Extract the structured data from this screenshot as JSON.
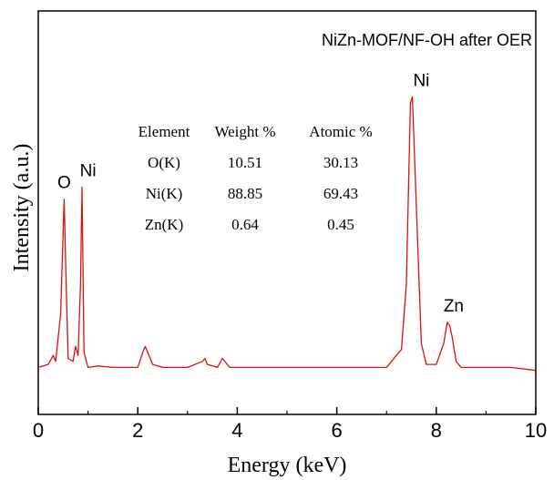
{
  "chart_data": {
    "type": "line",
    "title": "NiZn-MOF/NF-OH after OER",
    "xlabel": "Energy (keV)",
    "ylabel": "Intensity (a.u.)",
    "xlim": [
      0,
      10
    ],
    "ylim": [
      0,
      1
    ],
    "x_ticks": [
      "0",
      "2",
      "4",
      "6",
      "8",
      "10"
    ],
    "line_color": "#e01010",
    "grid": false,
    "series": [
      {
        "x": [
          0.0,
          0.2,
          0.3,
          0.35,
          0.45,
          0.52,
          0.56,
          0.6,
          0.7,
          0.75,
          0.8,
          0.85,
          0.88,
          0.92,
          1.0,
          1.2,
          1.5,
          2.0,
          2.1,
          2.15,
          2.2,
          2.3,
          2.5,
          3.0,
          3.3,
          3.35,
          3.4,
          3.6,
          3.7,
          3.75,
          3.85,
          4.5,
          5.5,
          6.5,
          7.0,
          7.3,
          7.4,
          7.48,
          7.52,
          7.6,
          7.7,
          7.8,
          8.0,
          8.15,
          8.22,
          8.27,
          8.32,
          8.4,
          8.5,
          9.0,
          9.5,
          10.0
        ],
        "y": [
          0.02,
          0.03,
          0.06,
          0.04,
          0.2,
          0.58,
          0.3,
          0.05,
          0.04,
          0.09,
          0.06,
          0.3,
          0.62,
          0.07,
          0.02,
          0.025,
          0.02,
          0.02,
          0.07,
          0.09,
          0.07,
          0.03,
          0.02,
          0.02,
          0.04,
          0.05,
          0.03,
          0.02,
          0.05,
          0.04,
          0.02,
          0.02,
          0.02,
          0.02,
          0.02,
          0.08,
          0.3,
          0.9,
          0.92,
          0.55,
          0.1,
          0.03,
          0.03,
          0.1,
          0.17,
          0.16,
          0.12,
          0.04,
          0.02,
          0.02,
          0.02,
          0.01
        ]
      }
    ],
    "annotations": [
      {
        "text": "O",
        "x": 0.52,
        "y": 0.58
      },
      {
        "text": "Ni",
        "x": 1.0,
        "y": 0.62
      },
      {
        "text": "Ni",
        "x": 7.7,
        "y": 0.92
      },
      {
        "text": "Zn",
        "x": 8.35,
        "y": 0.17
      }
    ],
    "table": {
      "headers": [
        "Element",
        "Weight %",
        "Atomic %"
      ],
      "rows": [
        [
          "O(K)",
          "10.51",
          "30.13"
        ],
        [
          "Ni(K)",
          "88.85",
          "69.43"
        ],
        [
          "Zn(K)",
          "0.64",
          "0.45"
        ]
      ]
    }
  }
}
